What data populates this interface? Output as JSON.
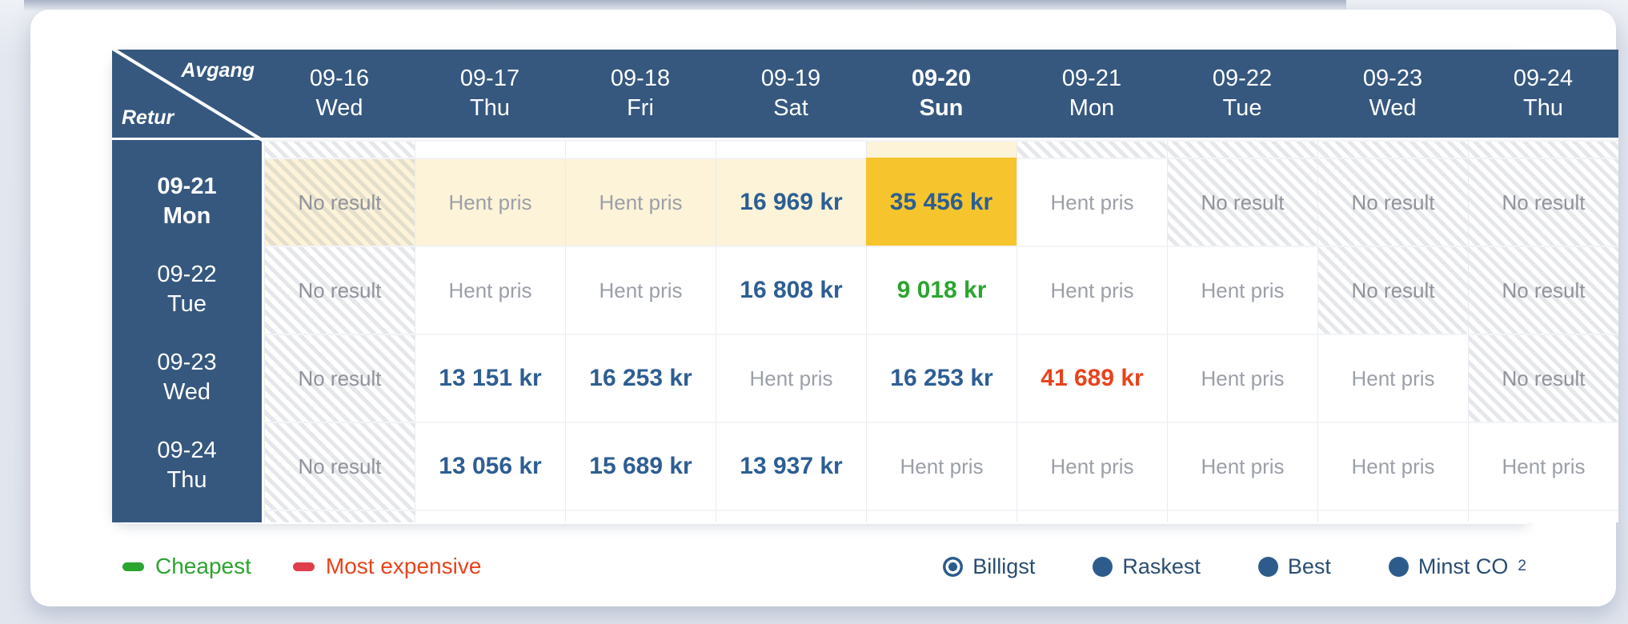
{
  "colors": {
    "header_blue": "#36587f",
    "selected_gold": "#f6c52d",
    "highlight_cream": "#fcf3d8",
    "price_blue": "#2d5e93",
    "cheapest_green": "#2ba52f",
    "expensive_red": "#e8431c",
    "radio_blue": "#2d5c8c",
    "legend_text_blue": "#2a4d73"
  },
  "table": {
    "corner": {
      "departure_label": "Avgang",
      "return_label": "Retur"
    },
    "columns": [
      {
        "date": "09-16",
        "day": "Wed",
        "bold": false
      },
      {
        "date": "09-17",
        "day": "Thu",
        "bold": false
      },
      {
        "date": "09-18",
        "day": "Fri",
        "bold": false
      },
      {
        "date": "09-19",
        "day": "Sat",
        "bold": false
      },
      {
        "date": "09-20",
        "day": "Sun",
        "bold": true
      },
      {
        "date": "09-21",
        "day": "Mon",
        "bold": false
      },
      {
        "date": "09-22",
        "day": "Tue",
        "bold": false
      },
      {
        "date": "09-23",
        "day": "Wed",
        "bold": false
      },
      {
        "date": "09-24",
        "day": "Thu",
        "bold": false
      }
    ],
    "top_partial": [
      "hatch",
      "plain",
      "plain",
      "plain",
      "cream",
      "hatch",
      "hatch",
      "hatch",
      "hatch"
    ],
    "bottom_partial": [
      "hatch",
      "plain",
      "plain",
      "plain",
      "plain",
      "plain",
      "plain",
      "plain",
      "plain"
    ],
    "rows": [
      {
        "date": "09-21",
        "day": "Mon",
        "bold": true,
        "cells": [
          {
            "text": "No result",
            "type": "noresult",
            "bg": "cream",
            "hatch": true
          },
          {
            "text": "Hent pris",
            "type": "fetch",
            "bg": "cream",
            "hatch": false
          },
          {
            "text": "Hent pris",
            "type": "fetch",
            "bg": "cream",
            "hatch": false
          },
          {
            "text": "16 969 kr",
            "type": "price",
            "bg": "cream",
            "hatch": false
          },
          {
            "text": "35 456 kr",
            "type": "price",
            "bg": "gold",
            "hatch": false
          },
          {
            "text": "Hent pris",
            "type": "fetch",
            "bg": "none",
            "hatch": false
          },
          {
            "text": "No result",
            "type": "noresult",
            "bg": "none",
            "hatch": true
          },
          {
            "text": "No result",
            "type": "noresult",
            "bg": "none",
            "hatch": true
          },
          {
            "text": "No result",
            "type": "noresult",
            "bg": "none",
            "hatch": true
          }
        ]
      },
      {
        "date": "09-22",
        "day": "Tue",
        "bold": false,
        "cells": [
          {
            "text": "No result",
            "type": "noresult",
            "bg": "none",
            "hatch": true
          },
          {
            "text": "Hent pris",
            "type": "fetch",
            "bg": "none",
            "hatch": false
          },
          {
            "text": "Hent pris",
            "type": "fetch",
            "bg": "none",
            "hatch": false
          },
          {
            "text": "16 808 kr",
            "type": "price",
            "bg": "none",
            "hatch": false
          },
          {
            "text": "9 018 kr",
            "type": "cheapest",
            "bg": "none",
            "hatch": false
          },
          {
            "text": "Hent pris",
            "type": "fetch",
            "bg": "none",
            "hatch": false
          },
          {
            "text": "Hent pris",
            "type": "fetch",
            "bg": "none",
            "hatch": false
          },
          {
            "text": "No result",
            "type": "noresult",
            "bg": "none",
            "hatch": true
          },
          {
            "text": "No result",
            "type": "noresult",
            "bg": "none",
            "hatch": true
          }
        ]
      },
      {
        "date": "09-23",
        "day": "Wed",
        "bold": false,
        "cells": [
          {
            "text": "No result",
            "type": "noresult",
            "bg": "none",
            "hatch": true
          },
          {
            "text": "13 151 kr",
            "type": "price",
            "bg": "none",
            "hatch": false
          },
          {
            "text": "16 253 kr",
            "type": "price",
            "bg": "none",
            "hatch": false
          },
          {
            "text": "Hent pris",
            "type": "fetch",
            "bg": "none",
            "hatch": false
          },
          {
            "text": "16 253 kr",
            "type": "price",
            "bg": "none",
            "hatch": false
          },
          {
            "text": "41 689 kr",
            "type": "expensive",
            "bg": "none",
            "hatch": false
          },
          {
            "text": "Hent pris",
            "type": "fetch",
            "bg": "none",
            "hatch": false
          },
          {
            "text": "Hent pris",
            "type": "fetch",
            "bg": "none",
            "hatch": false
          },
          {
            "text": "No result",
            "type": "noresult",
            "bg": "none",
            "hatch": true
          }
        ]
      },
      {
        "date": "09-24",
        "day": "Thu",
        "bold": false,
        "cells": [
          {
            "text": "No result",
            "type": "noresult",
            "bg": "none",
            "hatch": true
          },
          {
            "text": "13 056 kr",
            "type": "price",
            "bg": "none",
            "hatch": false
          },
          {
            "text": "15 689 kr",
            "type": "price",
            "bg": "none",
            "hatch": false
          },
          {
            "text": "13 937 kr",
            "type": "price",
            "bg": "none",
            "hatch": false
          },
          {
            "text": "Hent pris",
            "type": "fetch",
            "bg": "none",
            "hatch": false
          },
          {
            "text": "Hent pris",
            "type": "fetch",
            "bg": "none",
            "hatch": false
          },
          {
            "text": "Hent pris",
            "type": "fetch",
            "bg": "none",
            "hatch": false
          },
          {
            "text": "Hent pris",
            "type": "fetch",
            "bg": "none",
            "hatch": false
          },
          {
            "text": "Hent pris",
            "type": "fetch",
            "bg": "none",
            "hatch": false
          }
        ]
      }
    ]
  },
  "legend": {
    "cheapest_label": "Cheapest",
    "most_expensive_label": "Most expensive",
    "options": [
      {
        "label": "Billigst",
        "sub": "",
        "selected": true
      },
      {
        "label": "Raskest",
        "sub": "",
        "selected": false
      },
      {
        "label": "Best",
        "sub": "",
        "selected": false
      },
      {
        "label": "Minst CO",
        "sub": "2",
        "selected": false
      }
    ]
  }
}
